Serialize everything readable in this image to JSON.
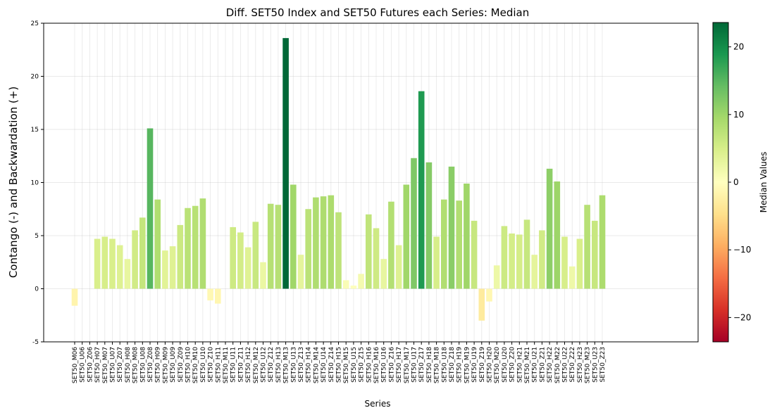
{
  "chart_data": {
    "type": "bar",
    "title": "Diff. SET50 Index and SET50 Futures each Series: Median",
    "xlabel": "Series",
    "ylabel": "Contango (-) and Backwardation (+)",
    "ylim": [
      -5,
      25
    ],
    "yticks": [
      -5,
      0,
      5,
      10,
      15,
      20,
      25
    ],
    "grid": true,
    "categories": [
      "SET50_M06",
      "SET50_U06",
      "SET50_Z06",
      "SET50_H07",
      "SET50_M07",
      "SET50_U07",
      "SET50_Z07",
      "SET50_H08",
      "SET50_M08",
      "SET50_U08",
      "SET50_Z08",
      "SET50_H09",
      "SET50_M09",
      "SET50_U09",
      "SET50_Z09",
      "SET50_H10",
      "SET50_M10",
      "SET50_U10",
      "SET50_Z10",
      "SET50_H11",
      "SET50_M11",
      "SET50_U11",
      "SET50_Z11",
      "SET50_H12",
      "SET50_M12",
      "SET50_U12",
      "SET50_Z12",
      "SET50_H13",
      "SET50_M13",
      "SET50_U13",
      "SET50_Z13",
      "SET50_H14",
      "SET50_M14",
      "SET50_U14",
      "SET50_Z14",
      "SET50_H15",
      "SET50_M15",
      "SET50_U15",
      "SET50_Z15",
      "SET50_H16",
      "SET50_M16",
      "SET50_U16",
      "SET50_Z16",
      "SET50_H17",
      "SET50_M17",
      "SET50_U17",
      "SET50_Z17",
      "SET50_H18",
      "SET50_M18",
      "SET50_U18",
      "SET50_Z18",
      "SET50_H19",
      "SET50_M19",
      "SET50_U19",
      "SET50_Z19",
      "SET50_H20",
      "SET50_M20",
      "SET50_U20",
      "SET50_Z20",
      "SET50_H21",
      "SET50_M21",
      "SET50_U21",
      "SET50_Z21",
      "SET50_H22",
      "SET50_M22",
      "SET50_U22",
      "SET50_Z22",
      "SET50_H23",
      "SET50_M23",
      "SET50_U23",
      "SET50_Z23"
    ],
    "values": [
      -1.6,
      0,
      0,
      4.7,
      4.9,
      4.7,
      4.1,
      2.8,
      5.5,
      6.7,
      15.1,
      8.4,
      3.6,
      4.0,
      6.0,
      7.6,
      7.8,
      8.5,
      -1.1,
      -1.4,
      0,
      5.8,
      5.3,
      3.9,
      6.3,
      2.5,
      8.0,
      7.9,
      23.6,
      9.8,
      3.2,
      7.5,
      8.6,
      8.7,
      8.8,
      7.2,
      0.8,
      0.3,
      1.4,
      7.0,
      5.7,
      2.8,
      8.2,
      4.1,
      9.8,
      12.3,
      18.6,
      11.9,
      4.9,
      8.4,
      11.5,
      8.3,
      9.9,
      6.4,
      -3.0,
      -1.2,
      2.2,
      5.9,
      5.2,
      5.1,
      6.5,
      3.2,
      5.5,
      11.3,
      10.1,
      4.9,
      2.1,
      4.7,
      7.9,
      6.4,
      8.8
    ],
    "colorbar": {
      "label": "Median Values",
      "colormap": "RdYlGn",
      "range": [
        -23.6,
        23.6
      ],
      "ticks": [
        -20,
        -10,
        0,
        10,
        20
      ],
      "tick_labels": [
        "−20",
        "−10",
        "0",
        "10",
        "20"
      ]
    }
  }
}
